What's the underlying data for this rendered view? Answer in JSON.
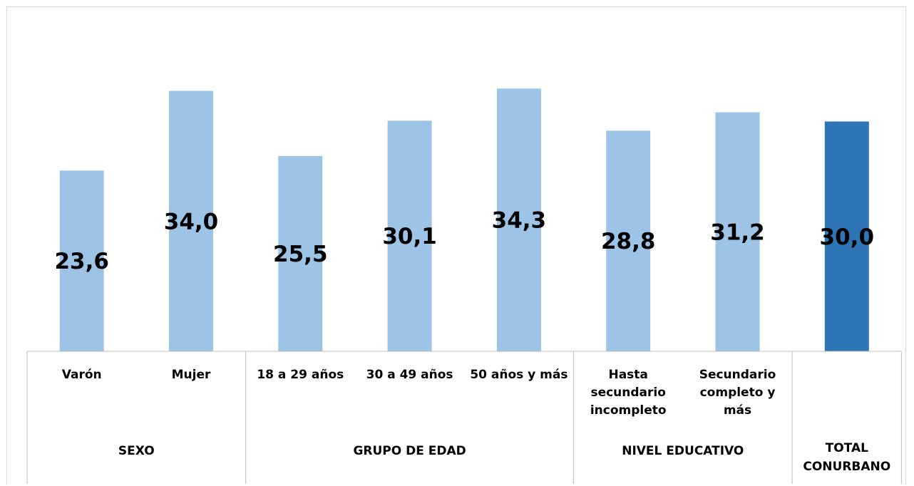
{
  "chart_data": {
    "type": "bar",
    "categories": [
      "Varón",
      "Mujer",
      "18 a 29 años",
      "30 a 49 años",
      "50 años y más",
      "Hasta secundario incompleto",
      "Secundario completo y más",
      ""
    ],
    "category_lines": [
      [
        "Varón"
      ],
      [
        "Mujer"
      ],
      [
        "18 a 29 años"
      ],
      [
        "30 a 49 años"
      ],
      [
        "50 años y más"
      ],
      [
        "Hasta",
        "secundario",
        "incompleto"
      ],
      [
        "Secundario",
        "completo y",
        "más"
      ],
      []
    ],
    "values": [
      23.6,
      34.0,
      25.5,
      30.1,
      34.3,
      28.8,
      31.2,
      30.0
    ],
    "value_labels": [
      "23,6",
      "34,0",
      "25,5",
      "30,1",
      "34,3",
      "28,8",
      "31,2",
      "30,0"
    ],
    "groups": [
      {
        "label_lines": [
          "SEXO"
        ],
        "start": 0,
        "count": 2
      },
      {
        "label_lines": [
          "GRUPO DE EDAD"
        ],
        "start": 2,
        "count": 3
      },
      {
        "label_lines": [
          "NIVEL EDUCATIVO"
        ],
        "start": 5,
        "count": 2
      },
      {
        "label_lines": [
          "TOTAL",
          "CONURBANO"
        ],
        "start": 7,
        "count": 1
      }
    ],
    "ylim": [
      0,
      40
    ],
    "grid": false,
    "legend": "none",
    "colors": {
      "bar": "#9dc3e6",
      "highlight_bar": "#2e75b6"
    },
    "highlight_index": 7
  }
}
